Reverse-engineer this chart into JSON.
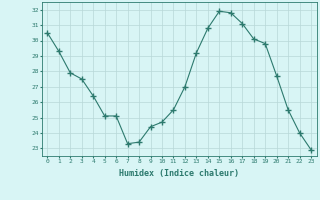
{
  "x": [
    0,
    1,
    2,
    3,
    4,
    5,
    6,
    7,
    8,
    9,
    10,
    11,
    12,
    13,
    14,
    15,
    16,
    17,
    18,
    19,
    20,
    21,
    22,
    23
  ],
  "y": [
    30.5,
    29.3,
    27.9,
    27.5,
    26.4,
    25.1,
    25.1,
    23.3,
    23.4,
    24.4,
    24.7,
    25.5,
    27.0,
    29.2,
    30.8,
    31.9,
    31.8,
    31.1,
    30.1,
    29.8,
    27.7,
    25.5,
    24.0,
    22.9
  ],
  "line_color": "#2d7a6e",
  "marker": "+",
  "marker_size": 4,
  "bg_color": "#d8f5f5",
  "grid_color": "#b8d8d8",
  "xlabel": "Humidex (Indice chaleur)",
  "ylabel_ticks": [
    23,
    24,
    25,
    26,
    27,
    28,
    29,
    30,
    31,
    32
  ],
  "xlim": [
    -0.5,
    23.5
  ],
  "ylim": [
    22.5,
    32.5
  ]
}
